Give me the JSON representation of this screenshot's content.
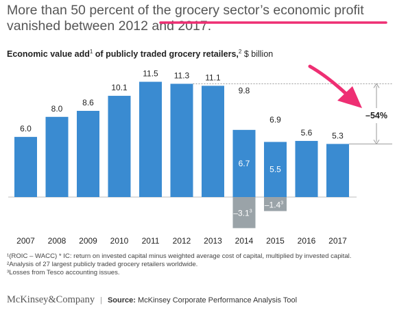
{
  "headline": "More than 50 percent of the grocery sector’s economic profit vanished between 2012 and 2017.",
  "colors": {
    "bar": "#3a8bd1",
    "negative": "#9aa3a8",
    "highlight": "#ee2f73",
    "guide": "#9a9a9a"
  },
  "chart_data": {
    "type": "bar",
    "title_main": "Economic value add",
    "title_sup1": "1",
    "title_rest": " of publicly traded grocery retailers,",
    "title_sup2": "2",
    "title_unit": " $ billion",
    "categories": [
      "2007",
      "2008",
      "2009",
      "2010",
      "2011",
      "2012",
      "2013",
      "2014",
      "2015",
      "2016",
      "2017"
    ],
    "values": [
      6.0,
      8.0,
      8.6,
      10.1,
      11.5,
      11.3,
      11.1,
      9.8,
      6.9,
      5.6,
      5.3
    ],
    "value_labels": [
      "6.0",
      "8.0",
      "8.6",
      "10.1",
      "11.5",
      "11.3",
      "11.1",
      "9.8",
      "6.9",
      "5.6",
      "5.3"
    ],
    "segments": [
      {
        "category": "2014",
        "positive": 6.7,
        "negative": -3.1,
        "positive_label": "6.7",
        "negative_label": "–3.1",
        "negative_sup": "3"
      },
      {
        "category": "2015",
        "positive": 5.5,
        "negative": -1.4,
        "positive_label": "5.5",
        "negative_label": "–1.4",
        "negative_sup": "3"
      }
    ],
    "change_label": "–54%",
    "ylim": [
      -3.1,
      11.5
    ]
  },
  "footnotes": [
    "¹(ROIC – WACC) * IC: return on invested capital minus weighted average cost of capital, multiplied by invested capital.",
    "²Analysis of 27 largest publicly traded grocery retailers worldwide.",
    "³Losses from Tesco accounting issues."
  ],
  "footer": {
    "brand": "McKinsey&Company",
    "separator": "|",
    "source_label": "Source:",
    "source_text": " McKinsey Corporate Performance Analysis Tool"
  }
}
